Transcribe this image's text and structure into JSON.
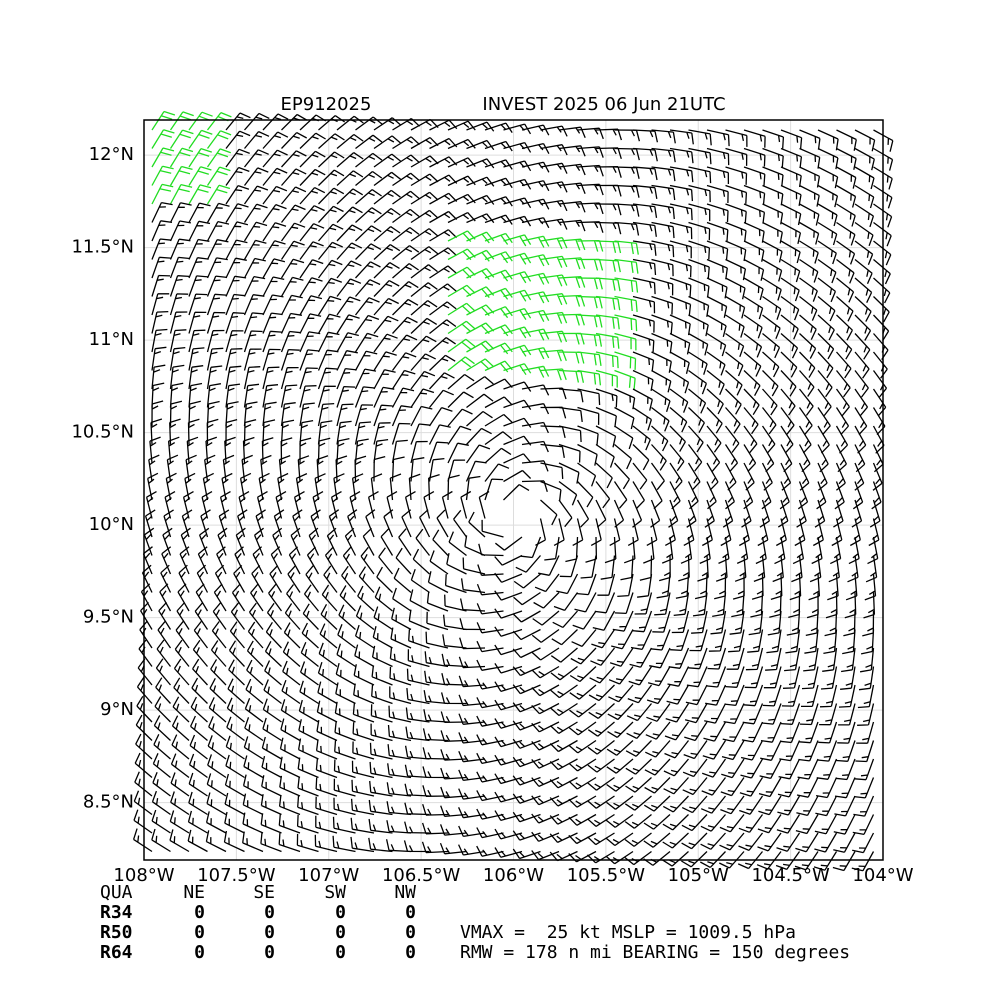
{
  "map": {
    "title_left": "EP912025",
    "title_right": "INVEST 2025 06 Jun 21UTC",
    "xlim": [
      -108,
      -104
    ],
    "ylim": [
      8.19,
      12.19
    ],
    "xticks": [
      {
        "value": -108,
        "label": "108°W"
      },
      {
        "value": -107.5,
        "label": "107.5°W"
      },
      {
        "value": -107,
        "label": "107°W"
      },
      {
        "value": -106.5,
        "label": "106.5°W"
      },
      {
        "value": -106,
        "label": "106°W"
      },
      {
        "value": -105.5,
        "label": "105.5°W"
      },
      {
        "value": -105,
        "label": "105°W"
      },
      {
        "value": -104.5,
        "label": "104.5°W"
      },
      {
        "value": -104,
        "label": "104°W"
      }
    ],
    "yticks": [
      {
        "value": 8.5,
        "label": "8.5°N"
      },
      {
        "value": 9,
        "label": "9°N"
      },
      {
        "value": 9.5,
        "label": "9.5°N"
      },
      {
        "value": 10,
        "label": "10°N"
      },
      {
        "value": 10.5,
        "label": "10.5°N"
      },
      {
        "value": 11,
        "label": "11°N"
      },
      {
        "value": 11.5,
        "label": "11.5°N"
      },
      {
        "value": 12,
        "label": "12°N"
      }
    ],
    "grid": true,
    "table": {
      "header": [
        "QUA",
        "NE",
        "SE",
        "SW",
        "NW"
      ],
      "rows": [
        [
          "R34",
          "0",
          "0",
          "0",
          "0"
        ],
        [
          "R50",
          "0",
          "0",
          "0",
          "0"
        ],
        [
          "R64",
          "0",
          "0",
          "0",
          "0"
        ]
      ]
    },
    "info": [
      "VMAX =  25 kt MSLP = 1009.5 hPa",
      "RMW = 178 n mi BEARING = 150 degrees"
    ]
  }
}
